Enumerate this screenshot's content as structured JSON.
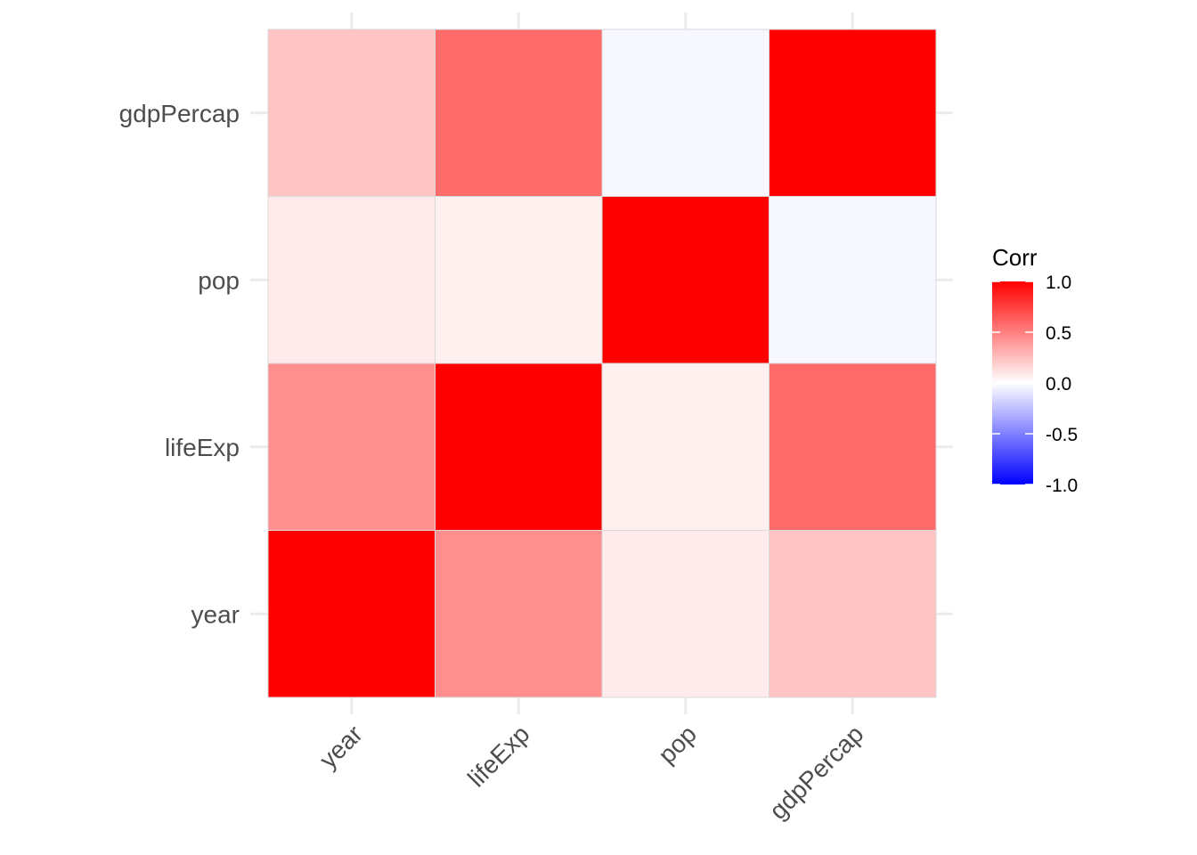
{
  "chart_data": {
    "type": "heatmap",
    "title": "",
    "xlabel": "",
    "ylabel": "",
    "x_categories": [
      "year",
      "lifeExp",
      "pop",
      "gdpPercap"
    ],
    "y_categories": [
      "year",
      "lifeExp",
      "pop",
      "gdpPercap"
    ],
    "values": [
      [
        1.0,
        0.44,
        0.08,
        0.23
      ],
      [
        0.44,
        1.0,
        0.06,
        0.58
      ],
      [
        0.08,
        0.06,
        1.0,
        -0.03
      ],
      [
        0.23,
        0.58,
        -0.03,
        1.0
      ]
    ],
    "grid": true,
    "legend": {
      "title": "Corr",
      "position": "right",
      "range": [
        -1,
        1
      ],
      "ticks": [
        1.0,
        0.5,
        0.0,
        -0.5,
        -1.0
      ],
      "tick_labels": [
        "1.0",
        "0.5",
        "0.0",
        "-0.5",
        "-1.0"
      ],
      "colors": {
        "low": "#0000ff",
        "mid": "#ffffff",
        "high": "#ff0000"
      }
    },
    "colors": {
      "grid": "#ebebeb",
      "tile_border": "#d9d9d9",
      "axis_text": "#4d4d4d"
    }
  }
}
